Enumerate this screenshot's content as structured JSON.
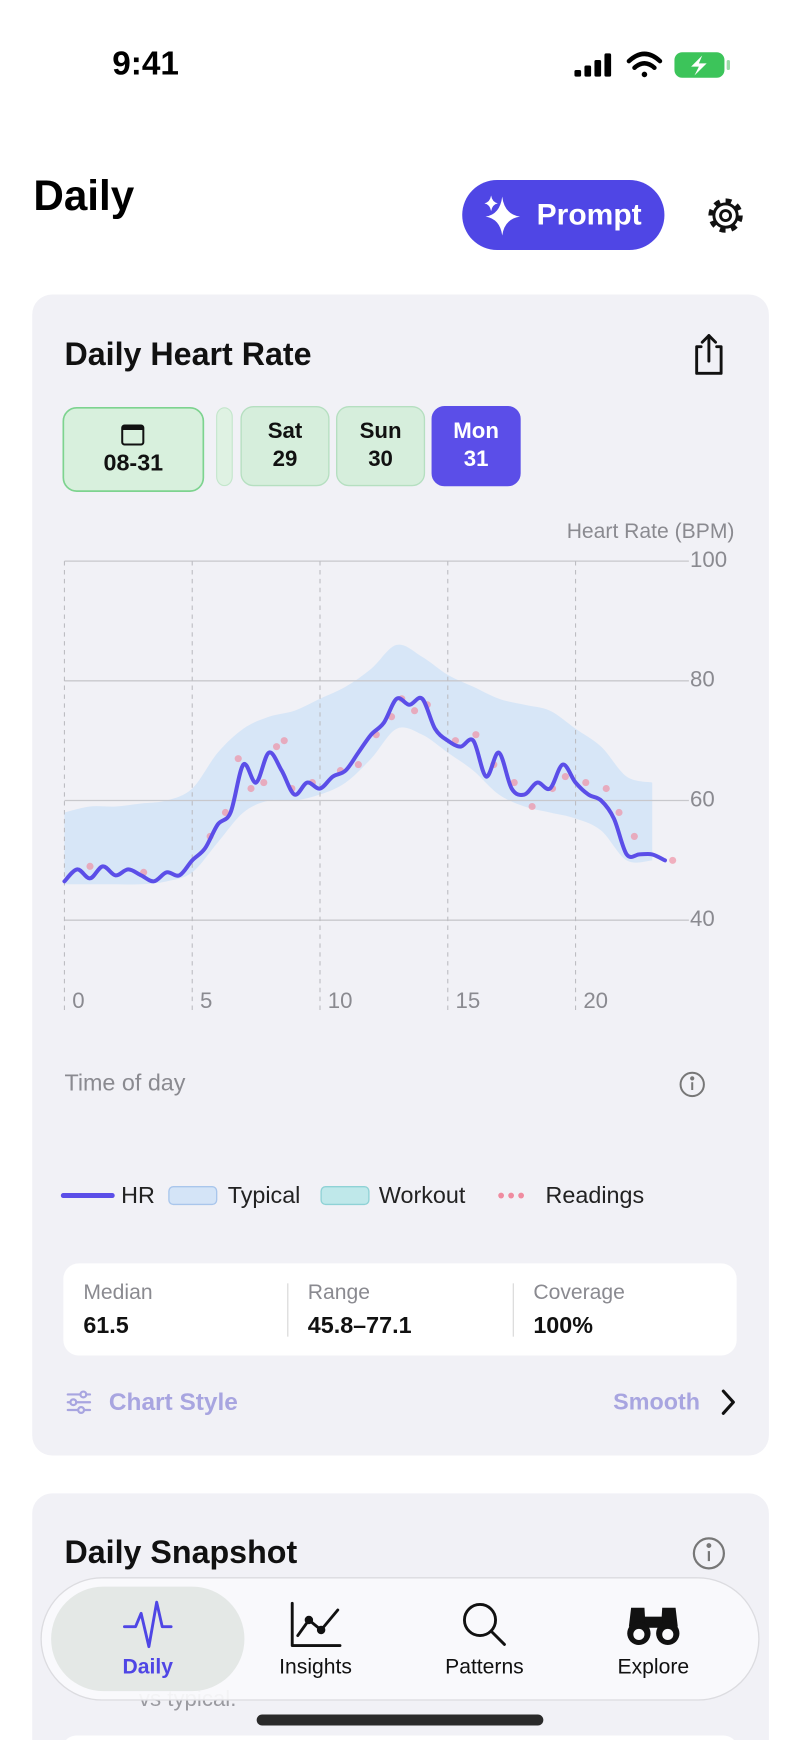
{
  "status_bar": {
    "time": "9:41"
  },
  "header": {
    "title": "Daily",
    "prompt_button": "Prompt"
  },
  "heart_rate_card": {
    "title": "Daily Heart Rate",
    "date_chip": "08-31",
    "days": [
      {
        "weekday": "Sat",
        "day": "29"
      },
      {
        "weekday": "Sun",
        "day": "30"
      },
      {
        "weekday": "Mon",
        "day": "31"
      }
    ],
    "stats": [
      {
        "label": "Median",
        "value": "61.5"
      },
      {
        "label": "Range",
        "value": "45.8–77.1"
      },
      {
        "label": "Coverage",
        "value": "100%"
      }
    ],
    "chart_style": {
      "label": "Chart Style",
      "value": "Smooth"
    }
  },
  "chart_data": {
    "type": "line",
    "y_label": "Heart Rate (BPM)",
    "x_label": "Time of day",
    "xlim": [
      0,
      24
    ],
    "ylim": [
      25,
      100
    ],
    "xticks": [
      0,
      5,
      10,
      15,
      20
    ],
    "yticks": [
      40,
      60,
      80,
      100
    ],
    "grid": true,
    "x": [
      0,
      0.5,
      1,
      1.5,
      2,
      2.5,
      3,
      3.5,
      4,
      4.5,
      5,
      5.5,
      6,
      6.5,
      7,
      7.5,
      8,
      8.5,
      9,
      9.5,
      10,
      10.5,
      11,
      11.5,
      12,
      12.5,
      13,
      13.5,
      14,
      14.5,
      15,
      15.5,
      16,
      16.5,
      17,
      17.5,
      18,
      18.5,
      19,
      19.5,
      20,
      20.5,
      21,
      21.5,
      22,
      22.5,
      23,
      23.5
    ],
    "series": [
      {
        "name": "HR",
        "color": "#5b4ee8",
        "values": [
          46.5,
          48.5,
          47,
          49,
          47.5,
          48.5,
          47.5,
          46.5,
          48,
          47.5,
          50,
          52,
          56,
          58,
          66,
          63,
          68,
          65,
          61,
          63,
          62,
          64,
          65,
          68,
          71,
          73,
          77,
          76,
          77,
          72,
          70,
          69,
          70,
          64,
          68,
          62,
          61,
          63,
          62,
          66,
          63,
          61,
          60,
          57,
          51,
          51,
          51,
          50
        ]
      }
    ],
    "band": {
      "name": "Typical",
      "color": "#d4e4f7",
      "x": [
        0,
        1,
        2,
        3,
        4,
        5,
        6,
        7,
        8,
        9,
        10,
        11,
        12,
        13,
        14,
        15,
        16,
        17,
        18,
        19,
        20,
        21,
        22,
        23
      ],
      "lower": [
        46,
        46,
        46,
        46,
        46.5,
        48,
        53,
        58,
        60,
        60,
        61,
        63,
        67,
        72,
        71,
        68,
        65,
        61,
        59,
        58,
        57,
        55,
        50,
        50
      ],
      "upper": [
        58,
        59,
        59,
        59.5,
        60,
        62,
        68,
        72,
        74,
        75,
        77,
        79,
        82,
        86,
        84,
        81,
        79,
        77,
        76,
        75,
        72,
        69,
        64,
        63
      ]
    },
    "workout": {
      "name": "Workout",
      "color": "#bfe8ea"
    },
    "readings": {
      "name": "Readings",
      "color": "#f08ca0",
      "x": [
        1.0,
        3.1,
        5.7,
        6.3,
        6.8,
        7.3,
        7.8,
        8.3,
        8.6,
        8.9,
        9.7,
        10.8,
        11.5,
        12.2,
        12.8,
        13.2,
        13.7,
        14.2,
        15.3,
        16.1,
        16.8,
        17.6,
        18.3,
        19.1,
        19.6,
        20.4,
        21.2,
        21.7,
        22.3,
        23.8
      ],
      "values": [
        49,
        48,
        54,
        58,
        67,
        62,
        63,
        69,
        70,
        62,
        63,
        65,
        66,
        71,
        74,
        77,
        75,
        76,
        70,
        71,
        66,
        63,
        59,
        62,
        64,
        63,
        62,
        58,
        54,
        50
      ]
    }
  },
  "snapshot_card": {
    "title": "Daily Snapshot",
    "note": "vs typical."
  },
  "tab_bar": {
    "tabs": [
      "Daily",
      "Insights",
      "Patterns",
      "Explore"
    ]
  }
}
